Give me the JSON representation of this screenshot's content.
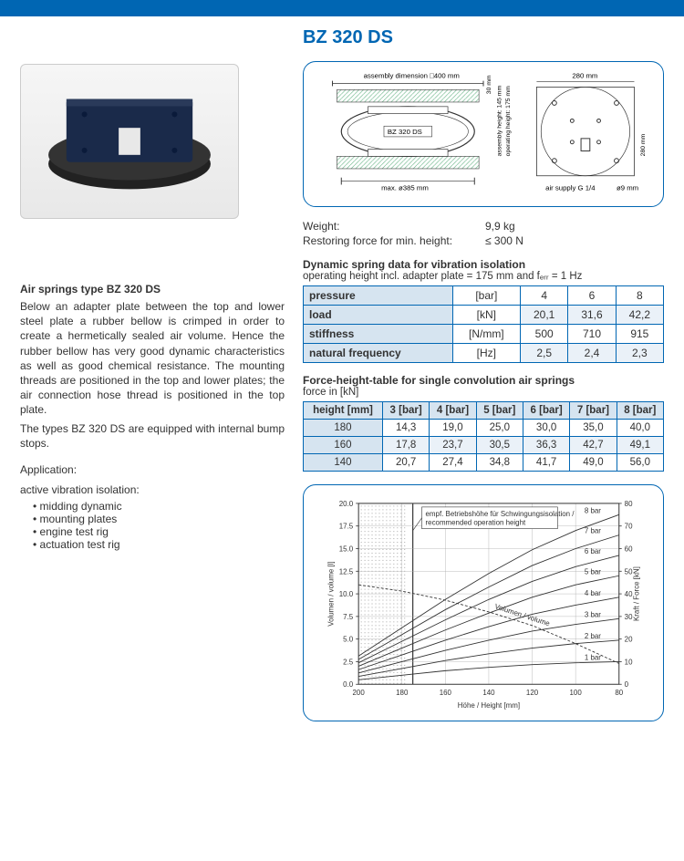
{
  "title": "BZ 320 DS",
  "left": {
    "heading": "Air springs type BZ 320 DS",
    "paragraph1": "Below an adapter plate between the top and lower steel plate a rubber bellow is crimped in order to create a hermetically sealed air volume. Hence the rubber bellow has very good dynamic characteristics as well as good chemical resistance. The mounting threads are positioned in the top and lower plates; the air connection hose thread is positioned in the top plate.",
    "paragraph2": "The types BZ 320 DS are equipped with internal bump stops.",
    "application_label": "Application:",
    "application_sub": "active vibration isolation:",
    "application_items": [
      "midding dynamic",
      "mounting plates",
      "engine test rig",
      "actuation test rig"
    ]
  },
  "tech_diagram": {
    "assembly_dim": "assembly dimension □400 mm",
    "top_clearance": "30 mm",
    "label_center": "BZ 320 DS",
    "max_dia": "max. ø385 mm",
    "assembly_height": "assembly height: 145 mm",
    "operating_height": "operating height: 175 mm",
    "top_width": "280 mm",
    "side_height": "280 mm",
    "air_supply": "air supply G 1/4",
    "hole": "ø9 mm"
  },
  "specs": {
    "weight_label": "Weight:",
    "weight_value": "9,9 kg",
    "restoring_label": "Restoring force for min. height:",
    "restoring_value": "≤ 300 N"
  },
  "dyn_table": {
    "title": "Dynamic spring data for vibration isolation",
    "subtitle": "operating height incl. adapter plate = 175 mm and fₑᵣᵣ = 1 Hz",
    "rows": [
      {
        "label": "pressure",
        "unit": "[bar]",
        "vals": [
          "4",
          "6",
          "8"
        ]
      },
      {
        "label": "load",
        "unit": "[kN]",
        "vals": [
          "20,1",
          "31,6",
          "42,2"
        ]
      },
      {
        "label": "stiffness",
        "unit": "[N/mm]",
        "vals": [
          "500",
          "710",
          "915"
        ]
      },
      {
        "label": "natural frequency",
        "unit": "[Hz]",
        "vals": [
          "2,5",
          "2,4",
          "2,3"
        ]
      }
    ]
  },
  "force_table": {
    "title": "Force-height-table for single convolution air springs",
    "subtitle": "force in [kN]",
    "headers": [
      "height [mm]",
      "3 [bar]",
      "4 [bar]",
      "5 [bar]",
      "6 [bar]",
      "7 [bar]",
      "8 [bar]"
    ],
    "rows": [
      [
        "180",
        "14,3",
        "19,0",
        "25,0",
        "30,0",
        "35,0",
        "40,0"
      ],
      [
        "160",
        "17,8",
        "23,7",
        "30,5",
        "36,3",
        "42,7",
        "49,1"
      ],
      [
        "140",
        "20,7",
        "27,4",
        "34,8",
        "41,7",
        "49,0",
        "56,0"
      ]
    ]
  },
  "chart": {
    "type": "line",
    "note": "empf. Betriebshöhe für Schwingungsisolation / recommended operation height",
    "x_label": "Höhe / Height [mm]",
    "y_left_label": "Volumen / volume [l]",
    "y_right_label": "Kraft / Force [kN]",
    "x_ticks": [
      200,
      180,
      160,
      140,
      120,
      100,
      80
    ],
    "y_left_ticks": [
      0.0,
      2.5,
      5.0,
      7.5,
      10.0,
      12.5,
      15.0,
      17.5,
      20.0
    ],
    "y_right_ticks": [
      0,
      10,
      20,
      30,
      40,
      50,
      60,
      70,
      80
    ],
    "hatch_xrange": [
      200,
      178
    ],
    "op_height_x": 175,
    "curves": [
      {
        "label": "1 bar",
        "dash": false,
        "points": [
          [
            200,
            2.0
          ],
          [
            180,
            4.0
          ],
          [
            160,
            6.0
          ],
          [
            140,
            7.5
          ],
          [
            120,
            8.7
          ],
          [
            100,
            9.5
          ],
          [
            80,
            10.0
          ]
        ]
      },
      {
        "label": "2 bar",
        "dash": false,
        "points": [
          [
            200,
            3.5
          ],
          [
            180,
            7.0
          ],
          [
            160,
            10.5
          ],
          [
            140,
            13.5
          ],
          [
            120,
            16.0
          ],
          [
            100,
            18.0
          ],
          [
            80,
            19.5
          ]
        ]
      },
      {
        "label": "3 bar",
        "dash": false,
        "points": [
          [
            200,
            5.0
          ],
          [
            180,
            10.0
          ],
          [
            160,
            15.0
          ],
          [
            140,
            19.5
          ],
          [
            120,
            23.5
          ],
          [
            100,
            26.5
          ],
          [
            80,
            29.0
          ]
        ]
      },
      {
        "label": "4 bar",
        "dash": false,
        "points": [
          [
            200,
            6.5
          ],
          [
            180,
            13.0
          ],
          [
            160,
            19.5
          ],
          [
            140,
            25.5
          ],
          [
            120,
            31.0
          ],
          [
            100,
            35.0
          ],
          [
            80,
            38.5
          ]
        ]
      },
      {
        "label": "5 bar",
        "dash": false,
        "points": [
          [
            200,
            8.0
          ],
          [
            180,
            16.0
          ],
          [
            160,
            24.0
          ],
          [
            140,
            31.5
          ],
          [
            120,
            38.5
          ],
          [
            100,
            44.0
          ],
          [
            80,
            48.0
          ]
        ]
      },
      {
        "label": "6 bar",
        "dash": false,
        "points": [
          [
            200,
            9.5
          ],
          [
            180,
            19.0
          ],
          [
            160,
            28.5
          ],
          [
            140,
            37.5
          ],
          [
            120,
            45.5
          ],
          [
            100,
            52.0
          ],
          [
            80,
            57.0
          ]
        ]
      },
      {
        "label": "7 bar",
        "dash": false,
        "points": [
          [
            200,
            11.0
          ],
          [
            180,
            22.0
          ],
          [
            160,
            33.0
          ],
          [
            140,
            43.0
          ],
          [
            120,
            52.5
          ],
          [
            100,
            60.0
          ],
          [
            80,
            66.0
          ]
        ]
      },
      {
        "label": "8 bar",
        "dash": false,
        "points": [
          [
            200,
            12.5
          ],
          [
            180,
            25.0
          ],
          [
            160,
            37.5
          ],
          [
            140,
            49.0
          ],
          [
            120,
            59.5
          ],
          [
            100,
            68.0
          ],
          [
            80,
            75.0
          ]
        ]
      },
      {
        "label": "Volumen / volume",
        "dash": true,
        "left_axis": true,
        "points": [
          [
            200,
            11.0
          ],
          [
            180,
            10.3
          ],
          [
            160,
            9.3
          ],
          [
            140,
            8.0
          ],
          [
            120,
            6.5
          ],
          [
            100,
            4.5
          ],
          [
            80,
            2.3
          ]
        ]
      }
    ],
    "colors": {
      "axis": "#333333",
      "curve": "#333333",
      "grid": "#aaaaaa",
      "hatch": "#999999",
      "frame": "#0066b3",
      "background": "#ffffff"
    }
  }
}
